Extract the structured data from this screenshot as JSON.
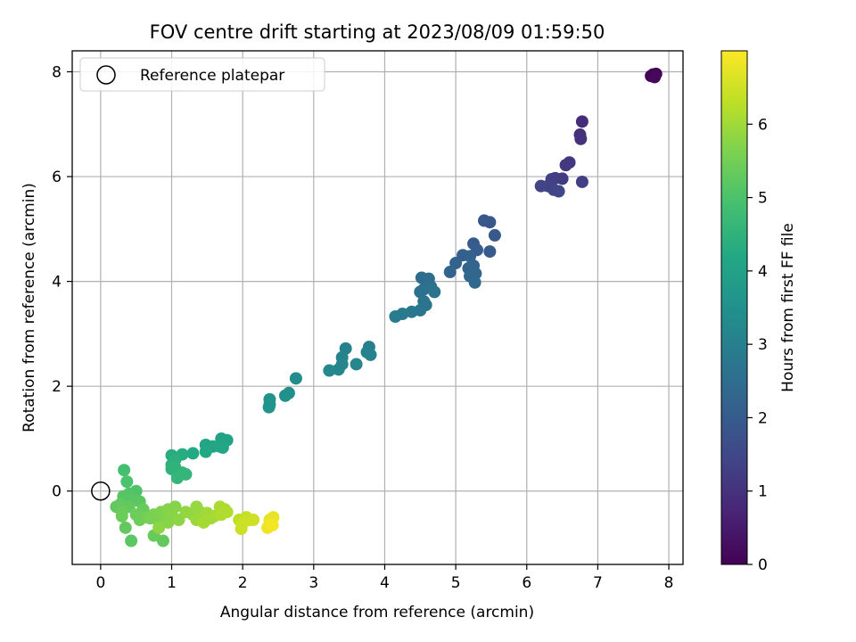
{
  "chart_data": {
    "type": "scatter",
    "title": "FOV centre drift starting at 2023/08/09 01:59:50",
    "xlabel": "Angular distance from reference (arcmin)",
    "ylabel": "Rotation from reference (arcmin)",
    "xlim": [
      -0.4,
      8.2
    ],
    "ylim": [
      -1.4,
      8.4
    ],
    "xticks": [
      "0",
      "1",
      "2",
      "3",
      "4",
      "5",
      "6",
      "7",
      "8"
    ],
    "yticks": [
      "0",
      "2",
      "4",
      "6",
      "8"
    ],
    "grid": true,
    "legend": {
      "placement": "top-left",
      "label": "Reference platepar"
    },
    "reference_point": {
      "x": 0,
      "y": 0
    },
    "colorbar": {
      "label": "Hours from first FF file",
      "range": [
        0,
        7
      ],
      "ticks": [
        "0",
        "1",
        "2",
        "3",
        "4",
        "5",
        "6"
      ],
      "colormap": "viridis"
    },
    "points": [
      {
        "x": 7.75,
        "y": 7.92,
        "c": 0.0
      },
      {
        "x": 7.78,
        "y": 7.95,
        "c": 0.05
      },
      {
        "x": 7.82,
        "y": 7.96,
        "c": 0.1
      },
      {
        "x": 7.8,
        "y": 7.9,
        "c": 0.15
      },
      {
        "x": 6.78,
        "y": 7.05,
        "c": 0.9
      },
      {
        "x": 6.75,
        "y": 6.8,
        "c": 0.95
      },
      {
        "x": 6.76,
        "y": 6.72,
        "c": 1.0
      },
      {
        "x": 6.6,
        "y": 6.27,
        "c": 1.1
      },
      {
        "x": 6.55,
        "y": 6.22,
        "c": 1.15
      },
      {
        "x": 6.5,
        "y": 5.96,
        "c": 1.2
      },
      {
        "x": 6.4,
        "y": 5.97,
        "c": 1.25
      },
      {
        "x": 6.35,
        "y": 5.95,
        "c": 1.3
      },
      {
        "x": 6.78,
        "y": 5.9,
        "c": 1.3
      },
      {
        "x": 6.3,
        "y": 5.82,
        "c": 1.35
      },
      {
        "x": 6.2,
        "y": 5.82,
        "c": 1.4
      },
      {
        "x": 6.38,
        "y": 5.75,
        "c": 1.4
      },
      {
        "x": 6.45,
        "y": 5.72,
        "c": 1.45
      },
      {
        "x": 5.4,
        "y": 5.16,
        "c": 1.9
      },
      {
        "x": 5.48,
        "y": 5.13,
        "c": 1.9
      },
      {
        "x": 5.55,
        "y": 4.88,
        "c": 1.95
      },
      {
        "x": 5.25,
        "y": 4.72,
        "c": 2.0
      },
      {
        "x": 5.3,
        "y": 4.6,
        "c": 2.05
      },
      {
        "x": 5.48,
        "y": 4.57,
        "c": 2.0
      },
      {
        "x": 5.1,
        "y": 4.5,
        "c": 2.1
      },
      {
        "x": 5.2,
        "y": 4.48,
        "c": 2.15
      },
      {
        "x": 5.0,
        "y": 4.35,
        "c": 2.2
      },
      {
        "x": 4.92,
        "y": 4.18,
        "c": 2.25
      },
      {
        "x": 5.18,
        "y": 4.25,
        "c": 2.2
      },
      {
        "x": 5.25,
        "y": 4.3,
        "c": 2.25
      },
      {
        "x": 5.28,
        "y": 4.15,
        "c": 2.3
      },
      {
        "x": 5.2,
        "y": 4.1,
        "c": 2.3
      },
      {
        "x": 5.27,
        "y": 3.98,
        "c": 2.35
      },
      {
        "x": 4.52,
        "y": 4.07,
        "c": 2.5
      },
      {
        "x": 4.62,
        "y": 4.05,
        "c": 2.5
      },
      {
        "x": 4.55,
        "y": 3.85,
        "c": 2.55
      },
      {
        "x": 4.65,
        "y": 3.9,
        "c": 2.6
      },
      {
        "x": 4.5,
        "y": 3.8,
        "c": 2.6
      },
      {
        "x": 4.7,
        "y": 3.8,
        "c": 2.65
      },
      {
        "x": 4.55,
        "y": 3.62,
        "c": 2.7
      },
      {
        "x": 4.58,
        "y": 3.55,
        "c": 2.7
      },
      {
        "x": 4.5,
        "y": 3.45,
        "c": 2.75
      },
      {
        "x": 4.38,
        "y": 3.42,
        "c": 2.8
      },
      {
        "x": 4.25,
        "y": 3.38,
        "c": 2.85
      },
      {
        "x": 4.15,
        "y": 3.33,
        "c": 2.9
      },
      {
        "x": 3.78,
        "y": 2.75,
        "c": 3.0
      },
      {
        "x": 3.45,
        "y": 2.72,
        "c": 3.05
      },
      {
        "x": 3.75,
        "y": 2.65,
        "c": 3.05
      },
      {
        "x": 3.8,
        "y": 2.6,
        "c": 3.1
      },
      {
        "x": 3.4,
        "y": 2.55,
        "c": 3.1
      },
      {
        "x": 3.4,
        "y": 2.42,
        "c": 3.15
      },
      {
        "x": 3.6,
        "y": 2.42,
        "c": 3.15
      },
      {
        "x": 3.35,
        "y": 2.32,
        "c": 3.2
      },
      {
        "x": 3.22,
        "y": 2.3,
        "c": 3.25
      },
      {
        "x": 2.75,
        "y": 2.15,
        "c": 3.4
      },
      {
        "x": 2.65,
        "y": 1.87,
        "c": 3.45
      },
      {
        "x": 2.6,
        "y": 1.82,
        "c": 3.5
      },
      {
        "x": 2.38,
        "y": 1.75,
        "c": 3.55
      },
      {
        "x": 2.38,
        "y": 1.65,
        "c": 3.6
      },
      {
        "x": 2.37,
        "y": 1.6,
        "c": 3.6
      },
      {
        "x": 1.7,
        "y": 1.0,
        "c": 4.0
      },
      {
        "x": 1.78,
        "y": 0.97,
        "c": 4.05
      },
      {
        "x": 1.48,
        "y": 0.88,
        "c": 4.1
      },
      {
        "x": 1.58,
        "y": 0.85,
        "c": 4.1
      },
      {
        "x": 1.68,
        "y": 0.85,
        "c": 4.15
      },
      {
        "x": 1.72,
        "y": 0.83,
        "c": 4.15
      },
      {
        "x": 1.48,
        "y": 0.75,
        "c": 4.2
      },
      {
        "x": 1.3,
        "y": 0.72,
        "c": 4.25
      },
      {
        "x": 1.15,
        "y": 0.7,
        "c": 4.3
      },
      {
        "x": 1.0,
        "y": 0.68,
        "c": 4.35
      },
      {
        "x": 1.05,
        "y": 0.6,
        "c": 4.4
      },
      {
        "x": 1.0,
        "y": 0.5,
        "c": 4.45
      },
      {
        "x": 1.05,
        "y": 0.45,
        "c": 4.5
      },
      {
        "x": 1.0,
        "y": 0.42,
        "c": 4.5
      },
      {
        "x": 1.15,
        "y": 0.35,
        "c": 4.55
      },
      {
        "x": 1.2,
        "y": 0.32,
        "c": 4.6
      },
      {
        "x": 1.08,
        "y": 0.25,
        "c": 4.6
      },
      {
        "x": 0.33,
        "y": 0.4,
        "c": 4.9
      },
      {
        "x": 0.37,
        "y": 0.18,
        "c": 5.0
      },
      {
        "x": 0.5,
        "y": 0.0,
        "c": 5.05
      },
      {
        "x": 0.4,
        "y": -0.05,
        "c": 5.1
      },
      {
        "x": 0.32,
        "y": -0.1,
        "c": 5.15
      },
      {
        "x": 0.45,
        "y": -0.15,
        "c": 5.15
      },
      {
        "x": 0.55,
        "y": -0.2,
        "c": 5.2
      },
      {
        "x": 0.28,
        "y": -0.25,
        "c": 5.25
      },
      {
        "x": 0.22,
        "y": -0.3,
        "c": 5.3
      },
      {
        "x": 0.4,
        "y": -0.3,
        "c": 5.3
      },
      {
        "x": 0.6,
        "y": -0.35,
        "c": 5.35
      },
      {
        "x": 0.3,
        "y": -0.4,
        "c": 5.4
      },
      {
        "x": 0.3,
        "y": -0.48,
        "c": 5.4
      },
      {
        "x": 0.5,
        "y": -0.45,
        "c": 5.45
      },
      {
        "x": 0.55,
        "y": -0.55,
        "c": 5.45
      },
      {
        "x": 0.65,
        "y": -0.5,
        "c": 5.5
      },
      {
        "x": 0.35,
        "y": -0.7,
        "c": 5.3
      },
      {
        "x": 0.43,
        "y": -0.95,
        "c": 5.2
      },
      {
        "x": 0.75,
        "y": -0.85,
        "c": 5.35
      },
      {
        "x": 0.88,
        "y": -0.95,
        "c": 5.3
      },
      {
        "x": 0.7,
        "y": -0.52,
        "c": 5.55
      },
      {
        "x": 0.8,
        "y": -0.55,
        "c": 5.6
      },
      {
        "x": 0.75,
        "y": -0.45,
        "c": 5.6
      },
      {
        "x": 0.85,
        "y": -0.4,
        "c": 5.65
      },
      {
        "x": 0.9,
        "y": -0.5,
        "c": 5.65
      },
      {
        "x": 0.95,
        "y": -0.35,
        "c": 5.7
      },
      {
        "x": 1.05,
        "y": -0.3,
        "c": 5.7
      },
      {
        "x": 1.0,
        "y": -0.45,
        "c": 5.75
      },
      {
        "x": 0.95,
        "y": -0.6,
        "c": 5.75
      },
      {
        "x": 0.82,
        "y": -0.7,
        "c": 5.8
      },
      {
        "x": 1.1,
        "y": -0.55,
        "c": 5.8
      },
      {
        "x": 1.2,
        "y": -0.4,
        "c": 5.85
      },
      {
        "x": 1.3,
        "y": -0.45,
        "c": 5.85
      },
      {
        "x": 1.35,
        "y": -0.3,
        "c": 5.9
      },
      {
        "x": 1.4,
        "y": -0.4,
        "c": 5.9
      },
      {
        "x": 1.35,
        "y": -0.55,
        "c": 5.95
      },
      {
        "x": 1.45,
        "y": -0.5,
        "c": 5.95
      },
      {
        "x": 1.5,
        "y": -0.42,
        "c": 6.0
      },
      {
        "x": 1.55,
        "y": -0.52,
        "c": 6.0
      },
      {
        "x": 1.45,
        "y": -0.6,
        "c": 6.05
      },
      {
        "x": 1.6,
        "y": -0.48,
        "c": 6.05
      },
      {
        "x": 1.68,
        "y": -0.3,
        "c": 6.1
      },
      {
        "x": 1.75,
        "y": -0.35,
        "c": 6.1
      },
      {
        "x": 1.78,
        "y": -0.4,
        "c": 6.15
      },
      {
        "x": 1.7,
        "y": -0.45,
        "c": 6.15
      },
      {
        "x": 1.95,
        "y": -0.55,
        "c": 6.3
      },
      {
        "x": 2.05,
        "y": -0.5,
        "c": 6.35
      },
      {
        "x": 2.1,
        "y": -0.55,
        "c": 6.4
      },
      {
        "x": 2.0,
        "y": -0.62,
        "c": 6.45
      },
      {
        "x": 1.98,
        "y": -0.72,
        "c": 6.45
      },
      {
        "x": 2.15,
        "y": -0.55,
        "c": 6.5
      },
      {
        "x": 2.38,
        "y": -0.55,
        "c": 6.7
      },
      {
        "x": 2.43,
        "y": -0.5,
        "c": 6.75
      },
      {
        "x": 2.38,
        "y": -0.62,
        "c": 6.8
      },
      {
        "x": 2.35,
        "y": -0.7,
        "c": 6.85
      },
      {
        "x": 2.42,
        "y": -0.65,
        "c": 6.9
      }
    ]
  }
}
